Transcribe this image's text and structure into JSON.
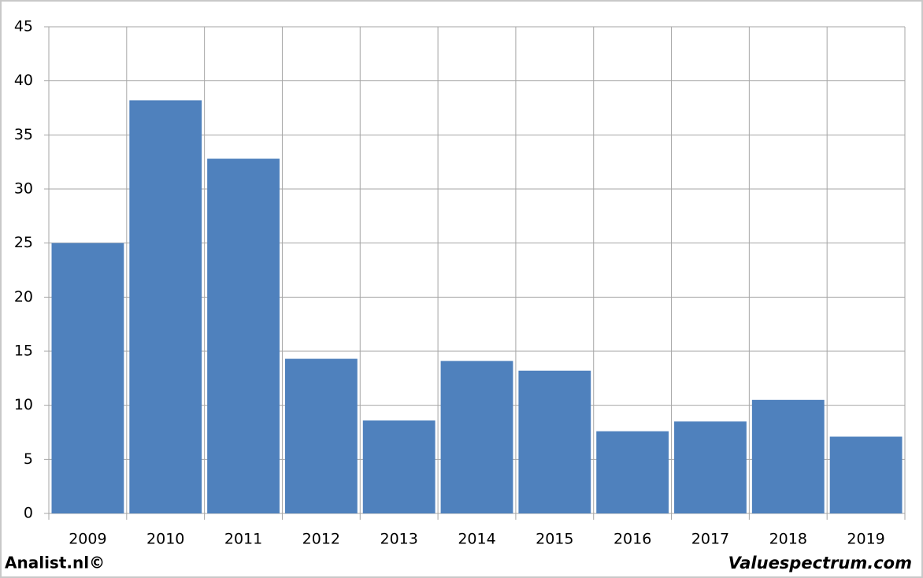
{
  "chart_data": {
    "type": "bar",
    "categories": [
      "2009",
      "2010",
      "2011",
      "2012",
      "2013",
      "2014",
      "2015",
      "2016",
      "2017",
      "2018",
      "2019"
    ],
    "values": [
      25.0,
      38.2,
      32.8,
      14.3,
      8.6,
      14.1,
      13.2,
      7.6,
      8.5,
      10.5,
      7.1
    ],
    "color": "#4f81bd",
    "ylim": [
      0,
      45
    ],
    "yticks": [
      0,
      5,
      10,
      15,
      20,
      25,
      30,
      35,
      40,
      45
    ],
    "grid": true,
    "source": "Analist.nl©",
    "credit": "Valuespectrum.com"
  }
}
